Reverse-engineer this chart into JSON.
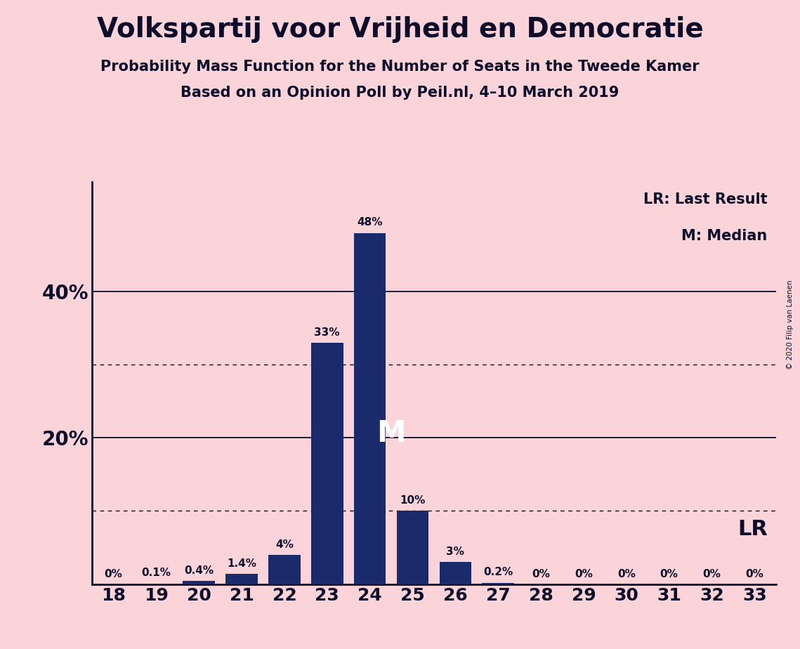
{
  "title": "Volkspartij voor Vrijheid en Democratie",
  "subtitle1": "Probability Mass Function for the Number of Seats in the Tweede Kamer",
  "subtitle2": "Based on an Opinion Poll by Peil.nl, 4–10 March 2019",
  "copyright": "© 2020 Filip van Laenen",
  "seats": [
    18,
    19,
    20,
    21,
    22,
    23,
    24,
    25,
    26,
    27,
    28,
    29,
    30,
    31,
    32,
    33
  ],
  "probabilities": [
    0.0,
    0.1,
    0.4,
    1.4,
    4.0,
    33.0,
    48.0,
    10.0,
    3.0,
    0.2,
    0.0,
    0.0,
    0.0,
    0.0,
    0.0,
    0.0
  ],
  "bar_labels": [
    "0%",
    "0.1%",
    "0.4%",
    "1.4%",
    "4%",
    "33%",
    "48%",
    "10%",
    "3%",
    "0.2%",
    "0%",
    "0%",
    "0%",
    "0%",
    "0%",
    "0%"
  ],
  "bar_color": "#1B2A6B",
  "background_color": "#FAD4D8",
  "text_color": "#0D0D2B",
  "median_seat": 24,
  "lr_seat": 26,
  "lr_label": "LR",
  "lr_legend": "LR: Last Result",
  "median_label": "M",
  "median_legend": "M: Median",
  "dotted_lines": [
    10,
    30
  ],
  "solid_lines": [
    20,
    40
  ],
  "xlim": [
    17.5,
    33.5
  ],
  "ylim": [
    0,
    55
  ]
}
